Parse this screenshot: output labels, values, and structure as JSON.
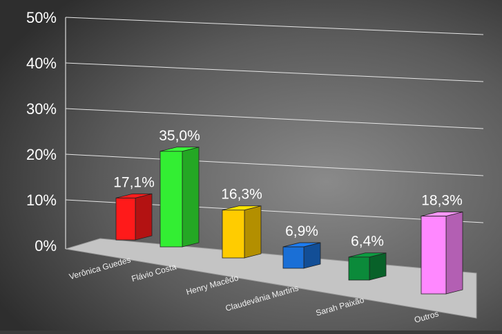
{
  "chart_data": {
    "type": "bar",
    "title": "",
    "xlabel": "",
    "ylabel": "",
    "categories": [
      "Verônica Guedes",
      "Flávio Costa",
      "Henry Macêdo",
      "Claudevânia Martins",
      "Sarah Paixão",
      "Outros"
    ],
    "values": [
      17.1,
      35.0,
      16.3,
      6.9,
      6.4,
      18.3
    ],
    "data_labels": [
      "17,1%",
      "35,0%",
      "16,3%",
      "6,9%",
      "6,4%",
      "18,3%"
    ],
    "bar_colors": [
      "#ff1a1a",
      "#33ee33",
      "#ffcc00",
      "#1a6fd6",
      "#0b8a3a",
      "#ff88ff"
    ],
    "y_ticks": [
      "0%",
      "10%",
      "20%",
      "30%",
      "40%",
      "50%"
    ],
    "ylim": [
      0,
      50
    ],
    "grid": true,
    "legend": "none",
    "style": "3d-column"
  }
}
